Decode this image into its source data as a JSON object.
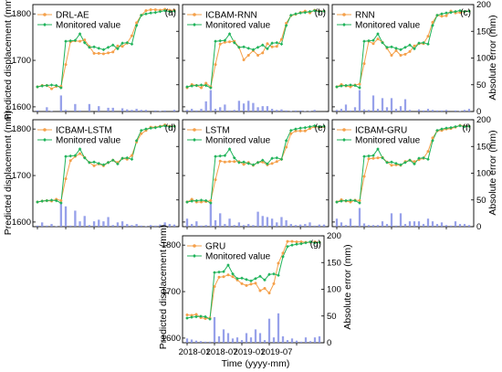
{
  "figure": {
    "left_axis_label": "Predicted displacement (mm)",
    "right_axis_label": "Absolute error (mm)",
    "x_axis_label": "Time (yyyy-mm)",
    "legend_monitored": "Monitored value",
    "colors": {
      "predicted": "#f5a04a",
      "monitored": "#1fb35a",
      "error_bars": "#8590e6",
      "axis": "#000000"
    }
  },
  "chart_data": [
    {
      "type": "line+bar",
      "panel": "(a)",
      "model": "DRL-AE",
      "ylim": [
        1590,
        1820
      ],
      "yticks": [
        1600,
        1700,
        1800
      ],
      "error_ylim": [
        0,
        200
      ],
      "error_yticks": [
        0,
        50,
        100,
        150,
        200
      ],
      "x_ticks": [
        "2018-01",
        "2018-07",
        "2019-01",
        "2019-07"
      ],
      "monitored": [
        1643,
        1645,
        1646,
        1647,
        1646,
        1641,
        1741,
        1742,
        1743,
        1757,
        1738,
        1728,
        1729,
        1726,
        1723,
        1728,
        1733,
        1725,
        1737,
        1738,
        1735,
        1775,
        1797,
        1800,
        1802,
        1803,
        1805,
        1807,
        1805,
        1806
      ],
      "predicted": [
        1643,
        1646,
        1646,
        1639,
        1644,
        1644,
        1691,
        1740,
        1742,
        1741,
        1744,
        1730,
        1715,
        1715,
        1714,
        1716,
        1718,
        1731,
        1730,
        1737,
        1753,
        1781,
        1797,
        1807,
        1809,
        1809,
        1808,
        1810,
        1808,
        1808
      ],
      "errors": [
        2,
        0,
        8,
        1,
        0,
        30,
        3,
        0,
        14,
        2,
        0,
        14,
        0,
        10,
        0,
        7,
        7,
        0,
        6,
        4,
        3,
        5,
        3,
        3,
        0,
        2,
        1,
        2,
        0,
        3
      ]
    },
    {
      "type": "line+bar",
      "panel": "(b)",
      "model": "ICBAM-RNN",
      "ylim": [
        1590,
        1820
      ],
      "yticks": [
        1600,
        1700,
        1800
      ],
      "error_ylim": [
        0,
        200
      ],
      "error_yticks": [
        0,
        50,
        100,
        150,
        200
      ],
      "x_ticks": [
        "2018-01",
        "2018-07",
        "2019-01",
        "2019-07"
      ],
      "monitored": [
        1643,
        1645,
        1646,
        1647,
        1646,
        1641,
        1741,
        1742,
        1743,
        1757,
        1738,
        1728,
        1729,
        1726,
        1723,
        1728,
        1733,
        1725,
        1737,
        1738,
        1735,
        1775,
        1797,
        1800,
        1802,
        1803,
        1805,
        1807,
        1805,
        1806
      ],
      "predicted": [
        1641,
        1648,
        1646,
        1641,
        1651,
        1643,
        1691,
        1735,
        1739,
        1740,
        1741,
        1728,
        1701,
        1711,
        1721,
        1711,
        1716,
        1736,
        1729,
        1730,
        1745,
        1780,
        1796,
        1799,
        1803,
        1806,
        1802,
        1808,
        1806,
        1806
      ],
      "errors": [
        3,
        5,
        2,
        5,
        19,
        40,
        5,
        8,
        13,
        2,
        3,
        20,
        15,
        20,
        16,
        8,
        10,
        10,
        5,
        3,
        4,
        2,
        1,
        2,
        2,
        1,
        1,
        3,
        0,
        0
      ]
    },
    {
      "type": "line+bar",
      "panel": "(c)",
      "model": "RNN",
      "ylim": [
        1590,
        1820
      ],
      "yticks": [
        1600,
        1700,
        1800
      ],
      "error_ylim": [
        0,
        200
      ],
      "error_yticks": [
        0,
        50,
        100,
        150,
        200
      ],
      "x_ticks": [
        "2018-01",
        "2018-07",
        "2019-01",
        "2019-07"
      ],
      "monitored": [
        1643,
        1645,
        1646,
        1647,
        1646,
        1641,
        1741,
        1742,
        1743,
        1757,
        1738,
        1728,
        1729,
        1726,
        1723,
        1728,
        1733,
        1725,
        1737,
        1738,
        1735,
        1775,
        1797,
        1800,
        1802,
        1803,
        1805,
        1807,
        1805,
        1806
      ],
      "predicted": [
        1643,
        1648,
        1645,
        1643,
        1647,
        1649,
        1693,
        1741,
        1736,
        1746,
        1739,
        1726,
        1711,
        1721,
        1711,
        1713,
        1719,
        1731,
        1736,
        1736,
        1752,
        1782,
        1797,
        1795,
        1796,
        1806,
        1802,
        1803,
        1805,
        1806
      ],
      "errors": [
        3,
        5,
        13,
        2,
        8,
        40,
        4,
        3,
        30,
        5,
        25,
        8,
        25,
        5,
        10,
        23,
        3,
        0,
        4,
        2,
        5,
        3,
        2,
        2,
        3,
        0,
        2,
        1,
        3,
        5
      ]
    },
    {
      "type": "line+bar",
      "panel": "(d)",
      "model": "ICBAM-LSTM",
      "ylim": [
        1590,
        1820
      ],
      "yticks": [
        1600,
        1700,
        1800
      ],
      "error_ylim": [
        0,
        200
      ],
      "error_yticks": [
        0,
        50,
        100,
        150,
        200
      ],
      "x_ticks": [
        "2018-01",
        "2018-07",
        "2019-01",
        "2019-07"
      ],
      "monitored": [
        1643,
        1645,
        1646,
        1647,
        1646,
        1641,
        1741,
        1742,
        1743,
        1757,
        1738,
        1728,
        1729,
        1726,
        1723,
        1728,
        1733,
        1725,
        1737,
        1738,
        1735,
        1775,
        1797,
        1800,
        1802,
        1803,
        1805,
        1807,
        1805,
        1806
      ],
      "predicted": [
        1643,
        1645,
        1646,
        1645,
        1649,
        1646,
        1693,
        1732,
        1741,
        1747,
        1739,
        1728,
        1721,
        1725,
        1721,
        1728,
        1733,
        1728,
        1737,
        1735,
        1743,
        1772,
        1790,
        1797,
        1804,
        1804,
        1806,
        1809,
        1806,
        1806
      ],
      "errors": [
        2,
        8,
        2,
        5,
        1,
        45,
        38,
        2,
        30,
        10,
        20,
        3,
        10,
        13,
        10,
        18,
        3,
        8,
        10,
        5,
        3,
        5,
        2,
        1,
        3,
        2,
        4,
        8,
        5,
        4
      ]
    },
    {
      "type": "line+bar",
      "panel": "(e)",
      "model": "LSTM",
      "ylim": [
        1590,
        1820
      ],
      "yticks": [
        1600,
        1700,
        1800
      ],
      "error_ylim": [
        0,
        200
      ],
      "error_yticks": [
        0,
        50,
        100,
        150,
        200
      ],
      "x_ticks": [
        "2018-01",
        "2018-07",
        "2019-01",
        "2019-07"
      ],
      "monitored": [
        1643,
        1645,
        1646,
        1647,
        1646,
        1641,
        1741,
        1742,
        1743,
        1757,
        1738,
        1728,
        1729,
        1726,
        1723,
        1728,
        1733,
        1725,
        1737,
        1738,
        1735,
        1775,
        1797,
        1800,
        1802,
        1803,
        1805,
        1807,
        1805,
        1806
      ],
      "predicted": [
        1643,
        1649,
        1643,
        1643,
        1644,
        1646,
        1691,
        1731,
        1729,
        1730,
        1730,
        1730,
        1724,
        1728,
        1722,
        1728,
        1729,
        1723,
        1726,
        1730,
        1735,
        1761,
        1790,
        1796,
        1796,
        1796,
        1801,
        1805,
        1804,
        1805
      ],
      "errors": [
        15,
        5,
        10,
        2,
        3,
        45,
        12,
        25,
        5,
        15,
        3,
        8,
        3,
        5,
        3,
        28,
        20,
        18,
        15,
        8,
        18,
        12,
        5,
        3,
        4,
        5,
        8,
        2,
        4,
        4
      ]
    },
    {
      "type": "line+bar",
      "panel": "(f)",
      "model": "ICBAM-GRU",
      "ylim": [
        1590,
        1820
      ],
      "yticks": [
        1600,
        1700,
        1800
      ],
      "error_ylim": [
        0,
        200
      ],
      "error_yticks": [
        0,
        50,
        100,
        150,
        200
      ],
      "x_ticks": [
        "2018-01",
        "2018-07",
        "2019-01",
        "2019-07"
      ],
      "monitored": [
        1643,
        1645,
        1646,
        1647,
        1646,
        1641,
        1741,
        1742,
        1743,
        1757,
        1738,
        1728,
        1729,
        1726,
        1723,
        1728,
        1733,
        1725,
        1737,
        1738,
        1735,
        1775,
        1797,
        1800,
        1802,
        1803,
        1805,
        1807,
        1805,
        1806
      ],
      "predicted": [
        1643,
        1648,
        1645,
        1643,
        1647,
        1646,
        1698,
        1736,
        1737,
        1738,
        1739,
        1729,
        1722,
        1723,
        1722,
        1730,
        1733,
        1730,
        1734,
        1737,
        1752,
        1781,
        1796,
        1797,
        1800,
        1801,
        1804,
        1808,
        1806,
        1806
      ],
      "errors": [
        15,
        8,
        3,
        15,
        2,
        35,
        6,
        3,
        3,
        3,
        10,
        5,
        25,
        2,
        25,
        5,
        10,
        10,
        10,
        5,
        15,
        10,
        5,
        8,
        3,
        2,
        10,
        5,
        5,
        3
      ]
    },
    {
      "type": "line+bar",
      "panel": "(g)",
      "model": "GRU",
      "ylim": [
        1590,
        1820
      ],
      "yticks": [
        1600,
        1700,
        1800
      ],
      "error_ylim": [
        0,
        200
      ],
      "error_yticks": [
        0,
        50,
        100,
        150,
        200
      ],
      "x_ticks": [
        "2018-01",
        "2018-07",
        "2019-01",
        "2019-07"
      ],
      "monitored": [
        1643,
        1645,
        1646,
        1647,
        1646,
        1641,
        1741,
        1742,
        1743,
        1757,
        1738,
        1728,
        1729,
        1726,
        1723,
        1728,
        1733,
        1725,
        1737,
        1738,
        1735,
        1775,
        1797,
        1800,
        1802,
        1803,
        1805,
        1807,
        1805,
        1806
      ],
      "predicted": [
        1650,
        1649,
        1651,
        1644,
        1642,
        1643,
        1711,
        1731,
        1732,
        1736,
        1732,
        1725,
        1717,
        1713,
        1716,
        1718,
        1702,
        1707,
        1697,
        1717,
        1761,
        1783,
        1808,
        1808,
        1807,
        1807,
        1806,
        1806,
        1807,
        1806
      ],
      "errors": [
        8,
        6,
        4,
        3,
        2,
        2,
        48,
        12,
        25,
        18,
        8,
        10,
        5,
        18,
        10,
        25,
        18,
        5,
        45,
        10,
        55,
        12,
        5,
        8,
        4,
        2,
        10,
        3,
        10,
        12
      ]
    }
  ]
}
